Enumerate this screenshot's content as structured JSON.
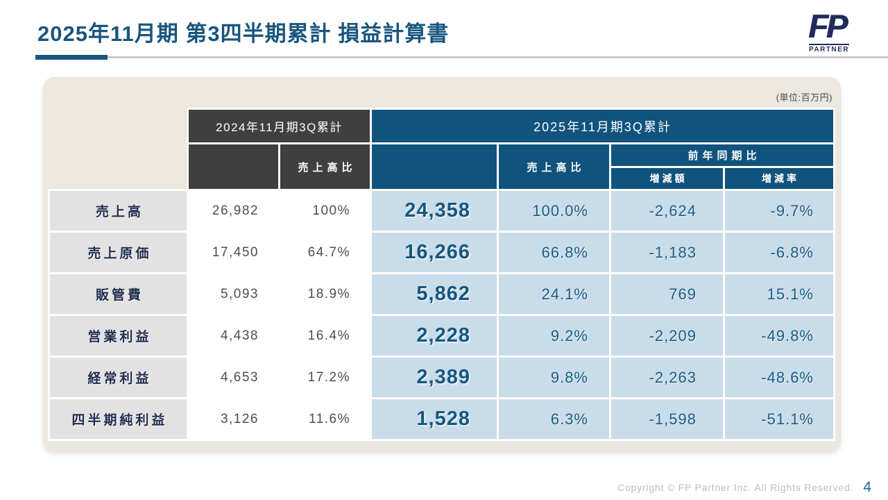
{
  "title": "2025年11月期 第3四半期累計 損益計算書",
  "logo": {
    "text": "FP",
    "subtext": "PARTNER"
  },
  "panel": {
    "unit_note": "(単位:百万円)"
  },
  "table": {
    "col_groups": {
      "prev": "2024年11月期3Q累計",
      "curr": "2025年11月期3Q累計"
    },
    "sub_headers": {
      "prev_sales_ratio": "売上高比",
      "curr_sales_ratio": "売上高比",
      "yoy": "前年同期比",
      "diff_amount": "増減額",
      "diff_rate": "増減率"
    },
    "rows": [
      {
        "label": "売上高",
        "prev_value": "26,982",
        "prev_ratio": "100%",
        "curr_value": "24,358",
        "curr_ratio": "100.0%",
        "diff_amount": "-2,624",
        "diff_rate": "-9.7%"
      },
      {
        "label": "売上原価",
        "prev_value": "17,450",
        "prev_ratio": "64.7%",
        "curr_value": "16,266",
        "curr_ratio": "66.8%",
        "diff_amount": "-1,183",
        "diff_rate": "-6.8%"
      },
      {
        "label": "販管費",
        "prev_value": "5,093",
        "prev_ratio": "18.9%",
        "curr_value": "5,862",
        "curr_ratio": "24.1%",
        "diff_amount": "769",
        "diff_rate": "15.1%"
      },
      {
        "label": "営業利益",
        "prev_value": "4,438",
        "prev_ratio": "16.4%",
        "curr_value": "2,228",
        "curr_ratio": "9.2%",
        "diff_amount": "-2,209",
        "diff_rate": "-49.8%"
      },
      {
        "label": "経常利益",
        "prev_value": "4,653",
        "prev_ratio": "17.2%",
        "curr_value": "2,389",
        "curr_ratio": "9.8%",
        "diff_amount": "-2,263",
        "diff_rate": "-48.6%"
      },
      {
        "label": "四半期純利益",
        "prev_value": "3,126",
        "prev_ratio": "11.6%",
        "curr_value": "1,528",
        "curr_ratio": "6.3%",
        "diff_amount": "-1,598",
        "diff_rate": "-51.1%"
      }
    ]
  },
  "footer": {
    "copyright": "Copyright © FP Partner Inc. All Rights Reserved.",
    "page_number": "4"
  },
  "colors": {
    "title_blue": "#19567E",
    "header_dark_gray": "#3F3F3F",
    "header_blue": "#10537D",
    "cell_light_blue": "#C9DCE9",
    "label_gray": "#E3E2E2",
    "panel_beige": "#ECE7DF",
    "value_blue": "#15577F"
  }
}
